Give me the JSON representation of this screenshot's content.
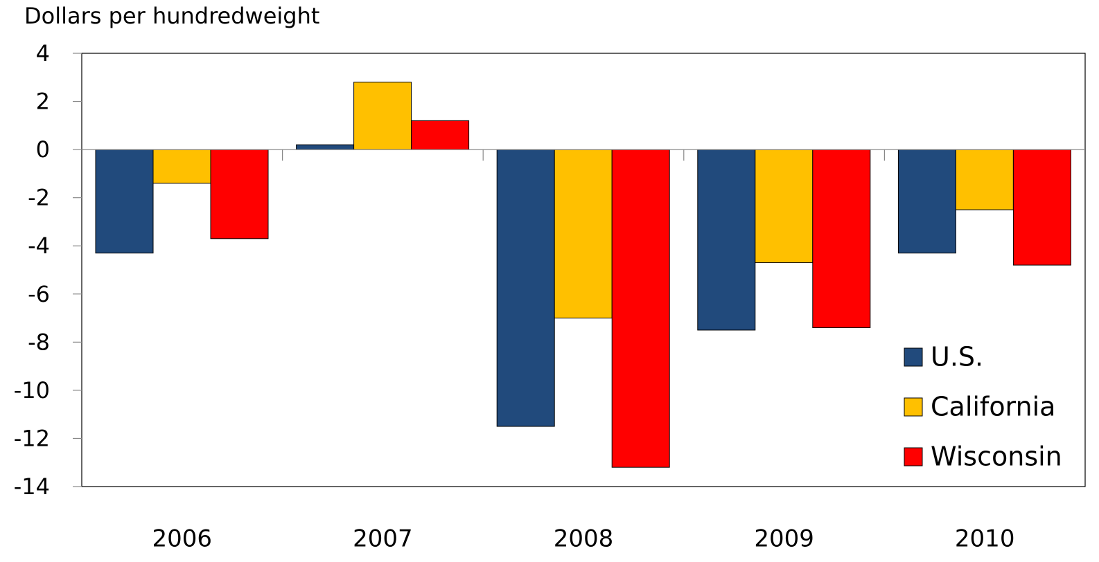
{
  "chart_data": {
    "type": "bar",
    "y_label": "Dollars per hundredweight",
    "categories": [
      "2006",
      "2007",
      "2008",
      "2009",
      "2010"
    ],
    "series": [
      {
        "name": "U.S.",
        "color": "#214a7c",
        "values": [
          -4.3,
          0.2,
          -11.5,
          -7.5,
          -4.3
        ]
      },
      {
        "name": "California",
        "color": "#ffc000",
        "values": [
          -1.4,
          2.8,
          -7.0,
          -4.7,
          -2.5
        ]
      },
      {
        "name": "Wisconsin",
        "color": "#ff0000",
        "values": [
          -3.7,
          1.2,
          -13.2,
          -7.4,
          -4.8
        ]
      }
    ],
    "ylim": [
      -14,
      4
    ],
    "yticks": [
      -14,
      -12,
      -10,
      -8,
      -6,
      -4,
      -2,
      0,
      2,
      4
    ],
    "legend": "lower right"
  }
}
